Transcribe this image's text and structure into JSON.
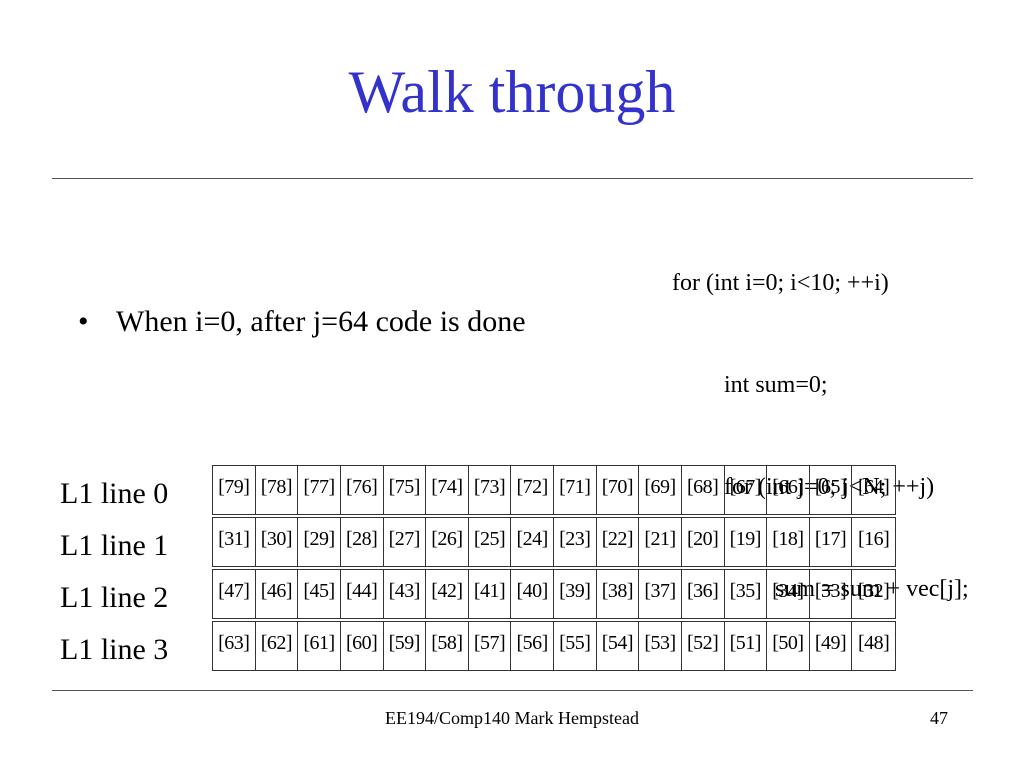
{
  "slide": {
    "title": "Walk through",
    "bullet": "When i=0, after j=64 code is done",
    "bullet_marker": "•",
    "footer": "EE194/Comp140 Mark Hempstead",
    "page_number": "47"
  },
  "code": [
    "for (int i=0; i<10; ++i)",
    "int sum=0;",
    "for (int j=0; j<N; ++j)",
    "sum = sum + vec[j];"
  ],
  "cache": {
    "lines": [
      {
        "label": "L1 line 0",
        "cells": [
          "[79]",
          "[78]",
          "[77]",
          "[76]",
          "[75]",
          "[74]",
          "[73]",
          "[72]",
          "[71]",
          "[70]",
          "[69]",
          "[68]",
          "[67]",
          "[66]",
          "[65]",
          "[64]"
        ]
      },
      {
        "label": "L1 line 1",
        "cells": [
          "[31]",
          "[30]",
          "[29]",
          "[28]",
          "[27]",
          "[26]",
          "[25]",
          "[24]",
          "[23]",
          "[22]",
          "[21]",
          "[20]",
          "[19]",
          "[18]",
          "[17]",
          "[16]"
        ]
      },
      {
        "label": "L1 line 2",
        "cells": [
          "[47]",
          "[46]",
          "[45]",
          "[44]",
          "[43]",
          "[42]",
          "[41]",
          "[40]",
          "[39]",
          "[38]",
          "[37]",
          "[36]",
          "[35]",
          "[34]",
          "[33]",
          "[32]"
        ]
      },
      {
        "label": "L1 line 3",
        "cells": [
          "[63]",
          "[62]",
          "[61]",
          "[60]",
          "[59]",
          "[58]",
          "[57]",
          "[56]",
          "[55]",
          "[54]",
          "[53]",
          "[52]",
          "[51]",
          "[50]",
          "[49]",
          "[48]"
        ]
      }
    ]
  }
}
